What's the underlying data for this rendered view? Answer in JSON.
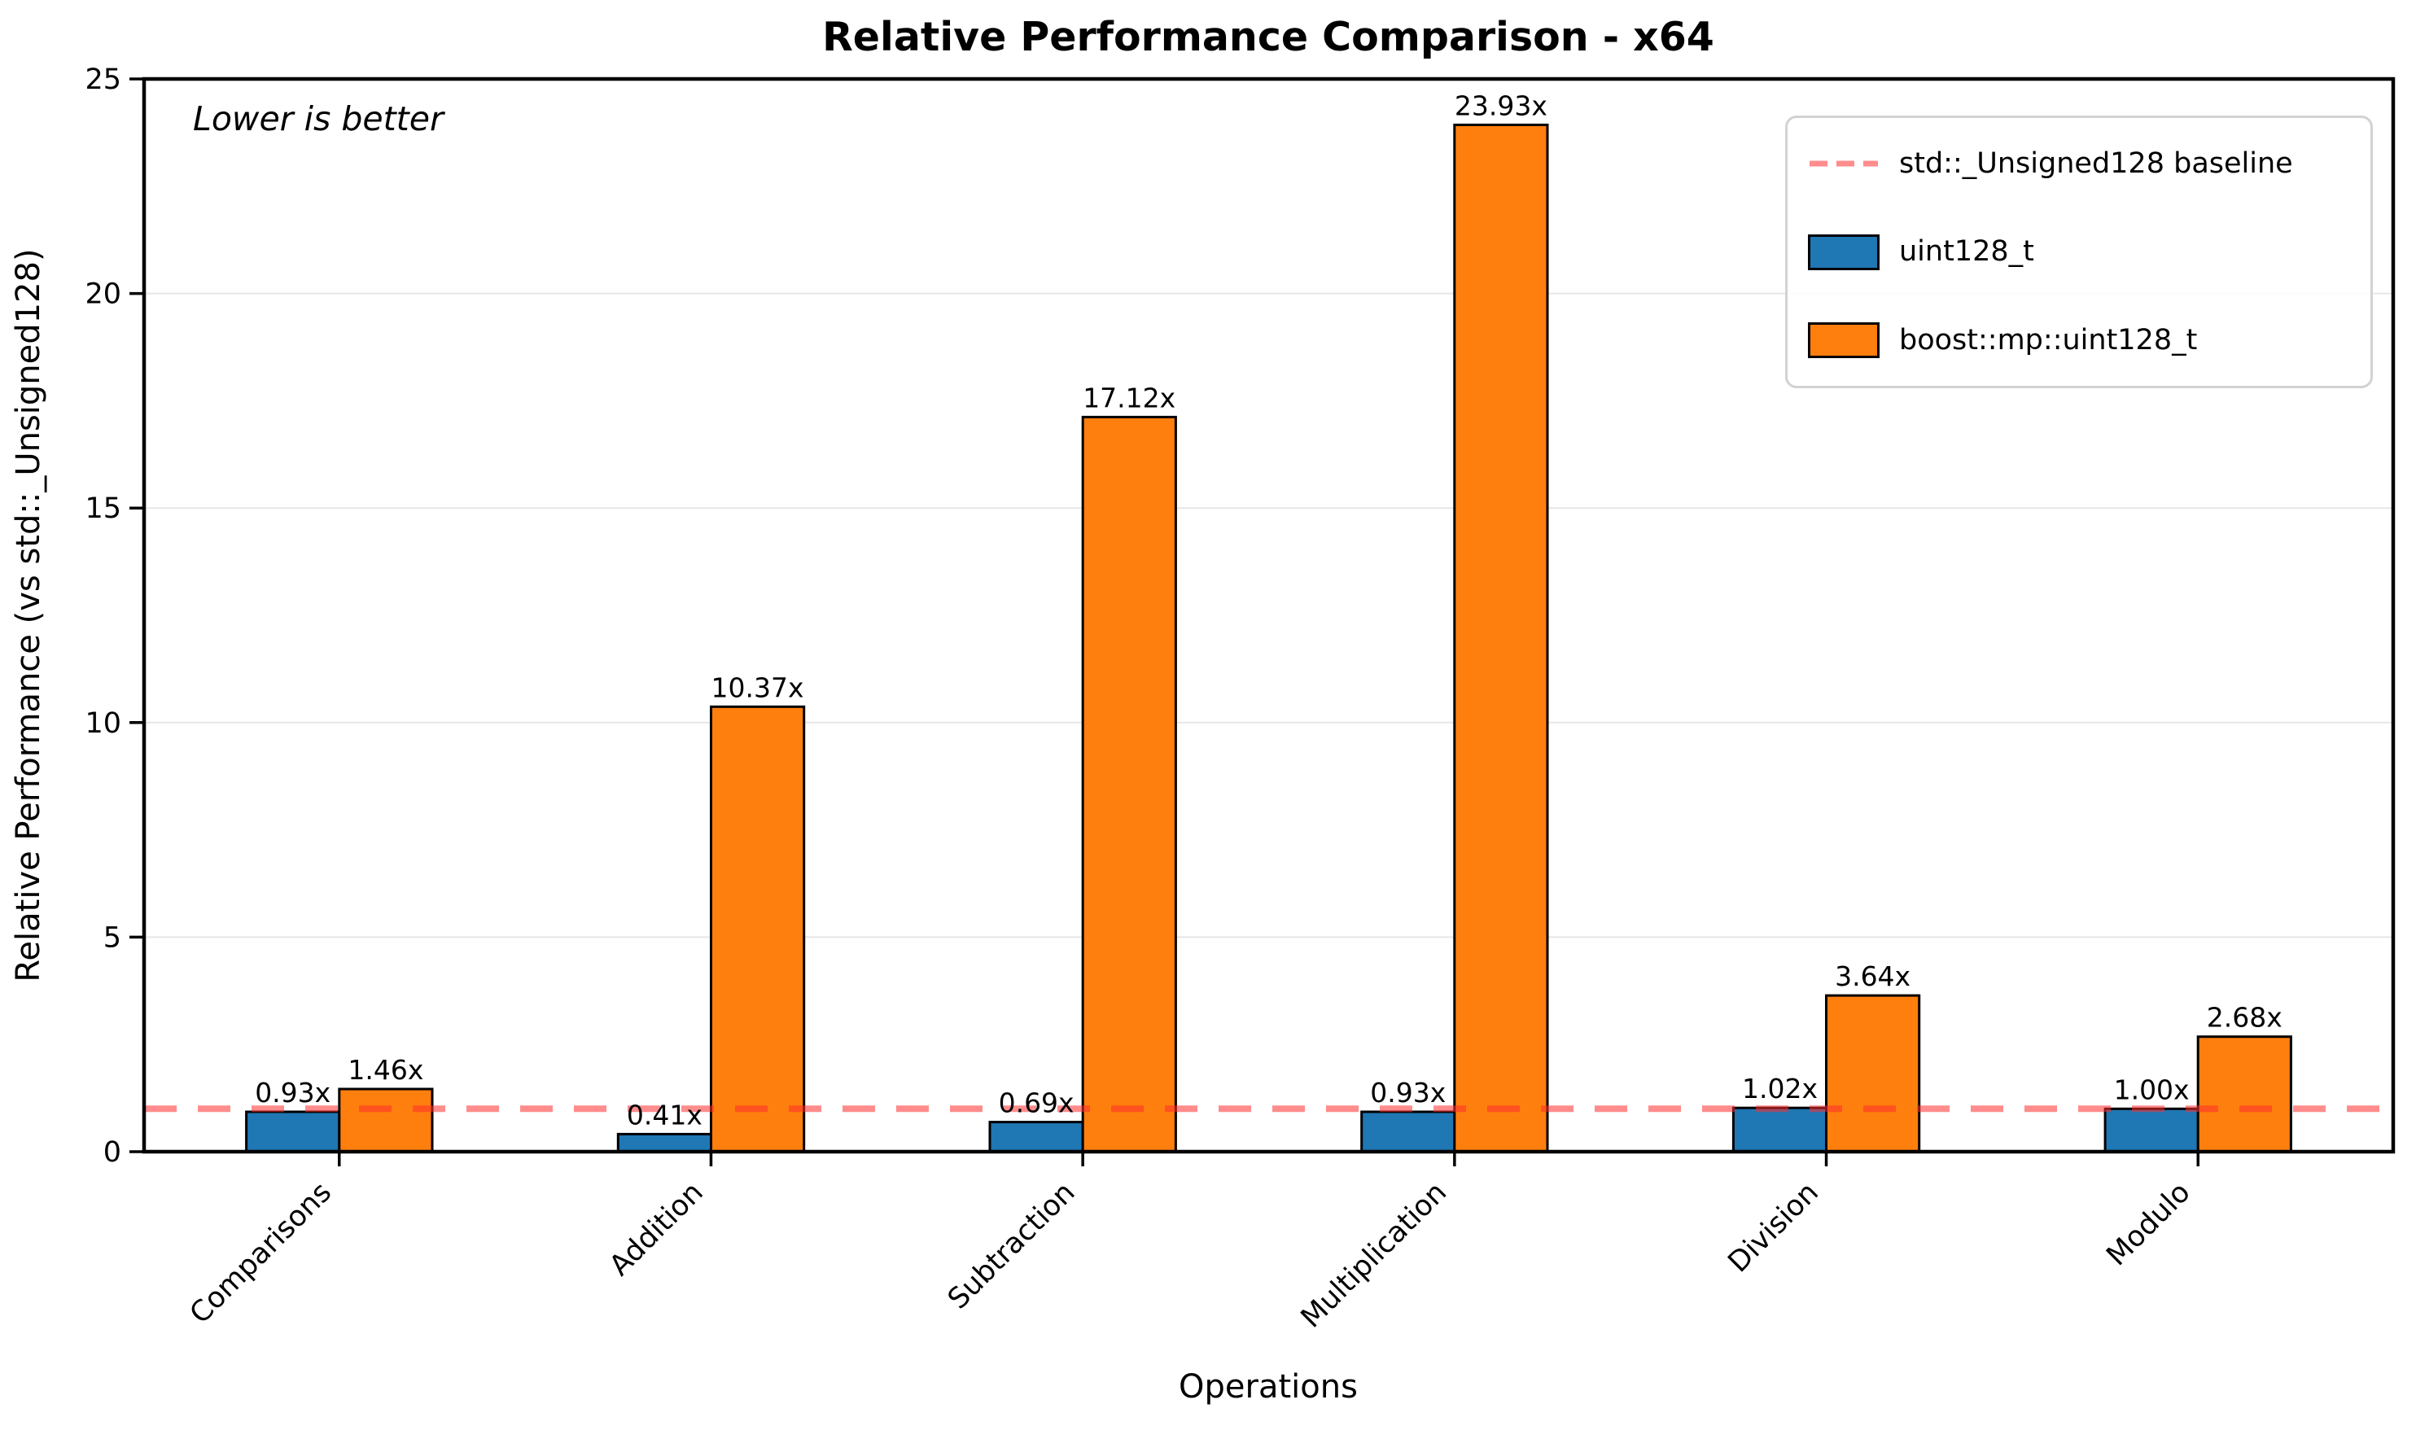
{
  "chart_data": {
    "type": "bar",
    "title": "Relative Performance Comparison - x64",
    "xlabel": "Operations",
    "ylabel": "Relative Performance (vs std::_Unsigned128)",
    "annotation": "Lower is better",
    "categories": [
      "Comparisons",
      "Addition",
      "Subtraction",
      "Multiplication",
      "Division",
      "Modulo"
    ],
    "series": [
      {
        "name": "uint128_t",
        "color": "#1f77b4",
        "values": [
          0.93,
          0.41,
          0.69,
          0.93,
          1.02,
          1.0
        ],
        "labels": [
          "0.93x",
          "0.41x",
          "0.69x",
          "0.93x",
          "1.02x",
          "1.00x"
        ]
      },
      {
        "name": "boost::mp::uint128_t",
        "color": "#ff7f0e",
        "values": [
          1.46,
          10.37,
          17.12,
          23.93,
          3.64,
          2.68
        ],
        "labels": [
          "1.46x",
          "10.37x",
          "17.12x",
          "23.93x",
          "3.64x",
          "2.68x"
        ]
      }
    ],
    "baseline": {
      "value": 1,
      "label": "std::_Unsigned128 baseline",
      "color": "#ff2d2d",
      "opacity": 0.55,
      "style": "dashed"
    },
    "yticks": [
      0,
      5,
      10,
      15,
      20,
      25
    ],
    "ylim": [
      0,
      25
    ],
    "grid": true,
    "grid_color": "#e7e7e7",
    "bar_edge_color": "#000000",
    "legend_position": "upper right",
    "legend": {
      "entries": [
        {
          "label": "std::_Unsigned128 baseline",
          "type": "dashed-line"
        },
        {
          "label": "uint128_t",
          "type": "patch"
        },
        {
          "label": "boost::mp::uint128_t",
          "type": "patch"
        }
      ]
    }
  }
}
